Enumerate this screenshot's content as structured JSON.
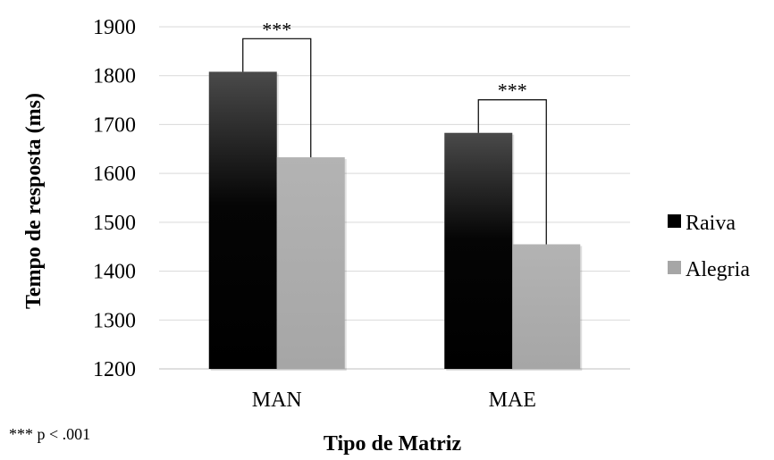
{
  "chart_data": {
    "type": "bar",
    "categories": [
      "MAN",
      "MAE"
    ],
    "series": [
      {
        "name": "Raiva",
        "values": [
          1808,
          1683
        ],
        "color": "#000000"
      },
      {
        "name": "Alegria",
        "values": [
          1633,
          1455
        ],
        "color": "#a6a6a6"
      }
    ],
    "xlabel": "Tipo de Matriz",
    "ylabel": "Tempo de resposta (ms)",
    "ylim": [
      1200,
      1900
    ],
    "yticks": [
      1200,
      1300,
      1400,
      1500,
      1600,
      1700,
      1800,
      1900
    ],
    "grid": true,
    "legend_position": "right",
    "significance_labels": [
      "***",
      "***"
    ],
    "footnote": "*** p < .001"
  }
}
